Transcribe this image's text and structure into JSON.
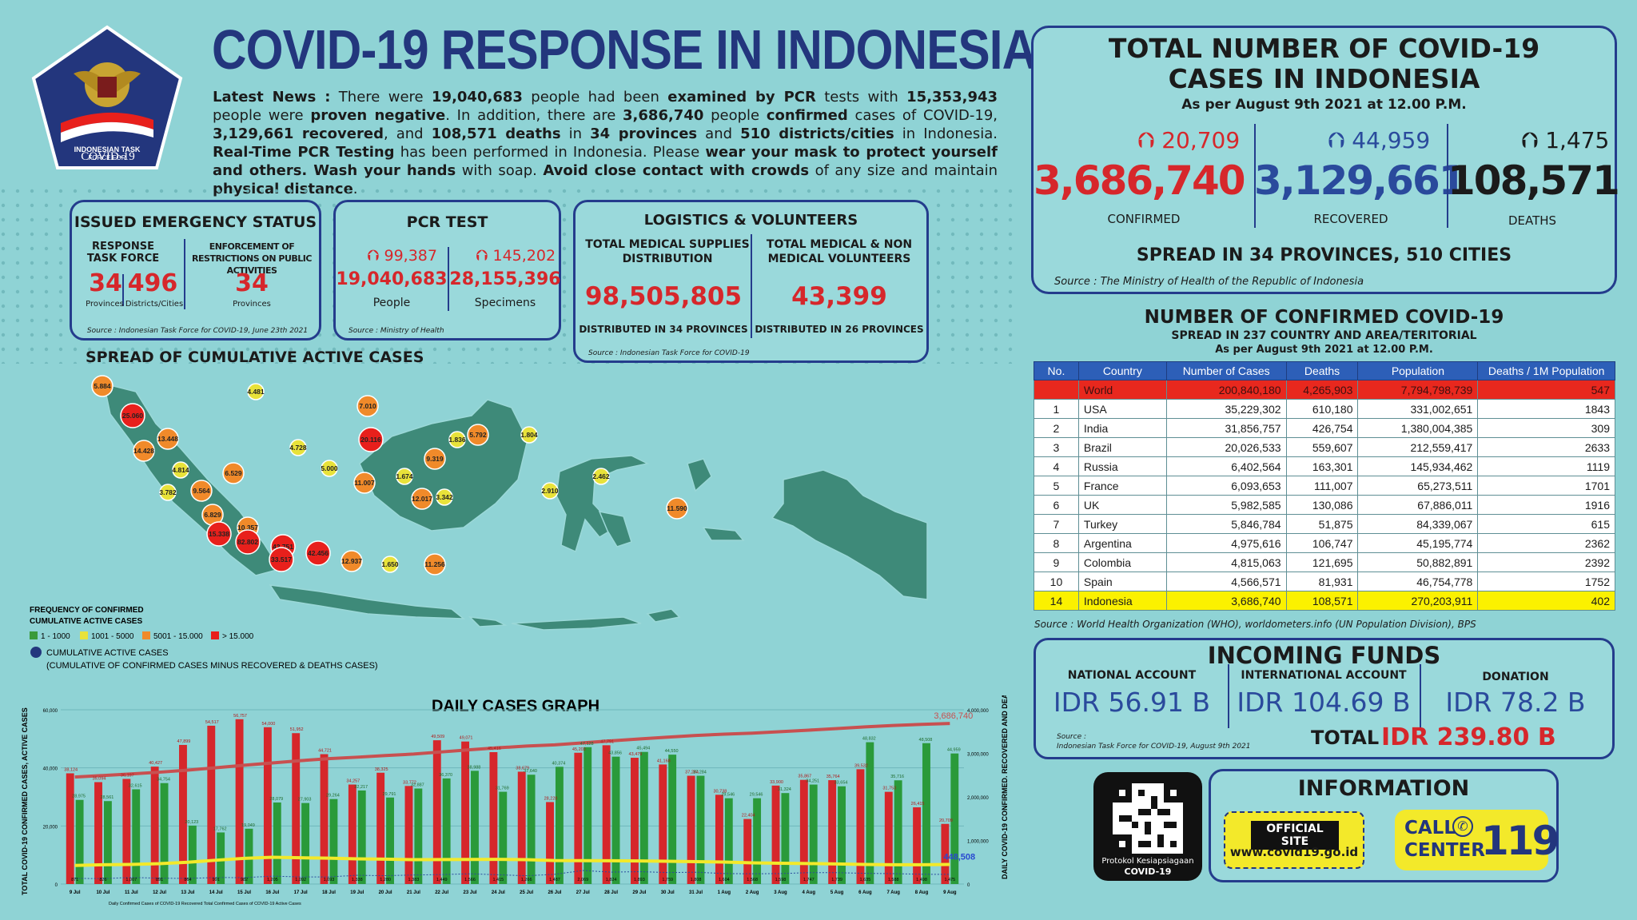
{
  "header": {
    "title": "COVID-19 RESPONSE IN INDONESIA",
    "logo_text": [
      "INDONESIAN TASK",
      "FORCE FOR",
      "COVID-19"
    ],
    "news_lead": "Latest News :",
    "news_parts": [
      {
        "t": " There were ",
        "b": false
      },
      {
        "t": "19,040,683",
        "b": true
      },
      {
        "t": " people had been ",
        "b": false
      },
      {
        "t": "examined by PCR",
        "b": true
      },
      {
        "t": " tests with ",
        "b": false
      },
      {
        "t": "15,353,943",
        "b": true
      },
      {
        "t": " people were ",
        "b": false
      },
      {
        "t": "proven negative",
        "b": true
      },
      {
        "t": ". In addition, there are ",
        "b": false
      },
      {
        "t": "3,686,740",
        "b": true
      },
      {
        "t": " people ",
        "b": false
      },
      {
        "t": "confirmed",
        "b": true
      },
      {
        "t": " cases of COVID-19, ",
        "b": false
      },
      {
        "t": "3,129,661 recovered",
        "b": true
      },
      {
        "t": ", and ",
        "b": false
      },
      {
        "t": "108,571 deaths",
        "b": true
      },
      {
        "t": " in ",
        "b": false
      },
      {
        "t": "34 provinces",
        "b": true
      },
      {
        "t": " and ",
        "b": false
      },
      {
        "t": "510 districts/cities",
        "b": true
      },
      {
        "t": " in Indonesia. ",
        "b": false
      },
      {
        "t": "Real-Time PCR Testing",
        "b": true
      },
      {
        "t": " has been performed in Indonesia. Please ",
        "b": false
      },
      {
        "t": "wear your mask to protect yourself and others. Wash your hands",
        "b": true
      },
      {
        "t": " with soap. ",
        "b": false
      },
      {
        "t": "Avoid close contact with crowds",
        "b": true
      },
      {
        "t": " of any size and maintain ",
        "b": false
      },
      {
        "t": "physical distance",
        "b": true
      },
      {
        "t": ".",
        "b": false
      }
    ]
  },
  "emergency": {
    "title": "ISSUED EMERGENCY STATUS",
    "left_label": "RESPONSE TASK FORCE",
    "right_label": "ENFORCEMENT OF RESTRICTIONS ON PUBLIC ACTIVITIES",
    "provinces_value": "34",
    "provinces_label": "Provinces",
    "districts_value": "496",
    "districts_label": "Districts/Cities",
    "enf_value": "34",
    "enf_label": "Provinces",
    "source": "Source : Indonesian Task Force for COVID-19, June 23th 2021"
  },
  "pcr": {
    "title": "PCR TEST",
    "people_delta": "99,387",
    "specimens_delta": "145,202",
    "people_value": "19,040,683",
    "specimens_value": "28,155,396",
    "people_label": "People",
    "specimens_label": "Specimens",
    "source": "Source : Ministry of Health"
  },
  "logistics": {
    "title": "LOGISTICS & VOLUNTEERS",
    "left_label": "TOTAL MEDICAL SUPPLIES DISTRIBUTION",
    "right_label": "TOTAL MEDICAL & NON MEDICAL VOLUNTEERS",
    "left_value": "98,505,805",
    "right_value": "43,399",
    "left_sub": "DISTRIBUTED IN 34 PROVINCES",
    "right_sub": "DISTRIBUTED IN 26 PROVINCES",
    "source": "Source : Indonesian Task Force for COVID-19"
  },
  "totals": {
    "title_line1": "TOTAL NUMBER OF COVID-19",
    "title_line2": "CASES IN INDONESIA",
    "asof": "As per August 9th 2021 at 12.00 P.M.",
    "confirmed_delta": "20,709",
    "recovered_delta": "44,959",
    "deaths_delta": "1,475",
    "confirmed": "3,686,740",
    "recovered": "3,129,661",
    "deaths": "108,571",
    "confirmed_label": "CONFIRMED",
    "recovered_label": "RECOVERED",
    "deaths_label": "DEATHS",
    "spread": "SPREAD IN 34 PROVINCES, 510 CITIES",
    "source": "Source : The Ministry of Health of the Republic of Indonesia"
  },
  "world": {
    "title": "NUMBER OF CONFIRMED COVID-19",
    "subtitle": "SPREAD IN 237 COUNTRY AND AREA/TERITORIAL",
    "asof": "As per August 9th 2021 at 12.00 P.M.",
    "headers": [
      "No.",
      "Country",
      "Number of Cases",
      "Deaths",
      "Population",
      "Deaths / 1M Population"
    ],
    "rows": [
      {
        "no": "",
        "country": "World",
        "cases": "200,840,180",
        "deaths": "4,265,903",
        "pop": "7,794,798,739",
        "dpm": "547",
        "kind": "world"
      },
      {
        "no": "1",
        "country": "USA",
        "cases": "35,229,302",
        "deaths": "610,180",
        "pop": "331,002,651",
        "dpm": "1843",
        "kind": ""
      },
      {
        "no": "2",
        "country": "India",
        "cases": "31,856,757",
        "deaths": "426,754",
        "pop": "1,380,004,385",
        "dpm": "309",
        "kind": ""
      },
      {
        "no": "3",
        "country": "Brazil",
        "cases": "20,026,533",
        "deaths": "559,607",
        "pop": "212,559,417",
        "dpm": "2633",
        "kind": ""
      },
      {
        "no": "4",
        "country": "Russia",
        "cases": "6,402,564",
        "deaths": "163,301",
        "pop": "145,934,462",
        "dpm": "1119",
        "kind": ""
      },
      {
        "no": "5",
        "country": "France",
        "cases": "6,093,653",
        "deaths": "111,007",
        "pop": "65,273,511",
        "dpm": "1701",
        "kind": ""
      },
      {
        "no": "6",
        "country": "UK",
        "cases": "5,982,585",
        "deaths": "130,086",
        "pop": "67,886,011",
        "dpm": "1916",
        "kind": ""
      },
      {
        "no": "7",
        "country": "Turkey",
        "cases": "5,846,784",
        "deaths": "51,875",
        "pop": "84,339,067",
        "dpm": "615",
        "kind": ""
      },
      {
        "no": "8",
        "country": "Argentina",
        "cases": "4,975,616",
        "deaths": "106,747",
        "pop": "45,195,774",
        "dpm": "2362",
        "kind": ""
      },
      {
        "no": "9",
        "country": "Colombia",
        "cases": "4,815,063",
        "deaths": "121,695",
        "pop": "50,882,891",
        "dpm": "2392",
        "kind": ""
      },
      {
        "no": "10",
        "country": "Spain",
        "cases": "4,566,571",
        "deaths": "81,931",
        "pop": "46,754,778",
        "dpm": "1752",
        "kind": ""
      },
      {
        "no": "14",
        "country": "Indonesia",
        "cases": "3,686,740",
        "deaths": "108,571",
        "pop": "270,203,911",
        "dpm": "402",
        "kind": "indo"
      }
    ],
    "source": "Source : World Health Organization (WHO), worldometers.info (UN Population Division), BPS"
  },
  "funds": {
    "title": "INCOMING FUNDS",
    "national_label": "NATIONAL ACCOUNT",
    "international_label": "INTERNATIONAL ACCOUNT",
    "donation_label": "DONATION",
    "national": "IDR 56.91 B",
    "international": "IDR 104.69 B",
    "donation": "IDR 78.2 B",
    "total_label": "TOTAL",
    "total": "IDR 239.80 B",
    "source_1": "Source :",
    "source_2": "Indonesian Task Force for COVID-19, August 9th 2021"
  },
  "info": {
    "title": "INFORMATION",
    "official_site": "OFFICIAL SITE",
    "url": "www.covid19.go.id",
    "call": "CALL",
    "center": "CENTER",
    "number": "119",
    "qr_caption_1": "Protokol Kesiapsiagaan",
    "qr_caption_2": "COVID-19"
  },
  "map": {
    "title": "SPREAD OF CUMULATIVE ACTIVE CASES",
    "legend_title_1": "FREQUENCY OF CONFIRMED",
    "legend_title_2": "CUMULATIVE ACTIVE CASES",
    "legend_items": [
      {
        "label": "1 - 1000",
        "color": "#3a9a3a"
      },
      {
        "label": "1001 - 5000",
        "color": "#e8e23a"
      },
      {
        "label": "5001 - 15.000",
        "color": "#f08a2a"
      },
      {
        "label": "> 15.000",
        "color": "#e8201c"
      }
    ],
    "cumulative_label": "CUMULATIVE ACTIVE CASES",
    "cumulative_note": "(CUMULATIVE OF CONFIRMED CASES MINUS RECOVERED & DEATHS CASES)",
    "bubbles": [
      {
        "label": "5.884",
        "level": "orange"
      },
      {
        "label": "4.481",
        "level": "yellow"
      },
      {
        "label": "25.060",
        "level": "red"
      },
      {
        "label": "13.448",
        "level": "orange"
      },
      {
        "label": "14.428",
        "level": "orange"
      },
      {
        "label": "4.814",
        "level": "yellow"
      },
      {
        "label": "6.529",
        "level": "orange"
      },
      {
        "label": "3.782",
        "level": "yellow"
      },
      {
        "label": "9.564",
        "level": "orange"
      },
      {
        "label": "6.829",
        "level": "orange"
      },
      {
        "label": "15.338",
        "level": "red"
      },
      {
        "label": "10.357",
        "level": "orange"
      },
      {
        "label": "82.802",
        "level": "red"
      },
      {
        "label": "42.751",
        "level": "red"
      },
      {
        "label": "33.517",
        "level": "red"
      },
      {
        "label": "42.456",
        "level": "red"
      },
      {
        "label": "12.937",
        "level": "orange"
      },
      {
        "label": "1.650",
        "level": "yellow"
      },
      {
        "label": "11.256",
        "level": "orange"
      },
      {
        "label": "4.728",
        "level": "yellow"
      },
      {
        "label": "7.010",
        "level": "orange"
      },
      {
        "label": "20.116",
        "level": "red"
      },
      {
        "label": "5.000",
        "level": "yellow"
      },
      {
        "label": "11.007",
        "level": "orange"
      },
      {
        "label": "1.674",
        "level": "yellow"
      },
      {
        "label": "12.017",
        "level": "orange"
      },
      {
        "label": "3.342",
        "level": "yellow"
      },
      {
        "label": "9.319",
        "level": "orange"
      },
      {
        "label": "1.836",
        "level": "yellow"
      },
      {
        "label": "5.792",
        "level": "orange"
      },
      {
        "label": "1.804",
        "level": "yellow"
      },
      {
        "label": "2.910",
        "level": "yellow"
      },
      {
        "label": "2.462",
        "level": "yellow"
      },
      {
        "label": "11.590",
        "level": "orange"
      }
    ]
  },
  "chart_data": {
    "type": "bar",
    "title": "DAILY CASES GRAPH",
    "ylabel_left": "TOTAL COVID-19 CONFIRMED CASES, ACTIVE CASES",
    "ylabel_right": "DAILY COVID-19 CONFIRMED, RECOVERED AND DEATHS",
    "y_ticks_left": [
      "0",
      "20,000",
      "40,000",
      "60,000"
    ],
    "y_ticks_right": [
      "0",
      "1,000,000",
      "2,000,000",
      "3,000,000",
      "4,000,000"
    ],
    "ylim_left": [
      0,
      60000
    ],
    "ylim_right": [
      0,
      4000000
    ],
    "categories": [
      "9 Jul",
      "10 Jul",
      "11 Jul",
      "12 Jul",
      "13 Jul",
      "14 Jul",
      "15 Jul",
      "16 Jul",
      "17 Jul",
      "18 Jul",
      "19 Jul",
      "20 Jul",
      "21 Jul",
      "22 Jul",
      "23 Jul",
      "24 Jul",
      "25 Jul",
      "26 Jul",
      "27 Jul",
      "28 Jul",
      "29 Jul",
      "30 Jul",
      "31 Jul",
      "1 Aug",
      "2 Aug",
      "3 Aug",
      "4 Aug",
      "5 Aug",
      "6 Aug",
      "7 Aug",
      "8 Aug",
      "9 Aug"
    ],
    "series": [
      {
        "name": "Daily Confirmed Cases of COVID-19",
        "color": "#d6272b",
        "values": [
          38124,
          35094,
          36197,
          40427,
          47899,
          54517,
          56757,
          54000,
          51952,
          44721,
          34257,
          38325,
          33772,
          49509,
          49071,
          45416,
          38679,
          28228,
          45203,
          47791,
          43479,
          41168,
          37284,
          30738,
          22404,
          33900,
          35867,
          35764,
          39532,
          31753,
          26415,
          20709
        ]
      },
      {
        "name": "Daily Recovered",
        "color": "#2a9a3a",
        "values": [
          28975,
          28561,
          32615,
          34754,
          20123,
          17762,
          19049,
          28079,
          27903,
          29264,
          32217,
          29791,
          32887,
          36370,
          38988,
          31769,
          37640,
          40374,
          47128,
          43856,
          45494,
          44550,
          37284,
          29546,
          29546,
          31324,
          34251,
          33654,
          48832,
          35716,
          48508,
          44959
        ]
      },
      {
        "name": "Total Confirmed Cases of COVID-19",
        "color": "#c85050",
        "values": [
          2455912,
          2491006,
          2527203,
          2567630,
          2615529,
          2670046,
          2726803,
          2780803,
          2832755,
          2877476,
          2911733,
          2950058,
          2983830,
          3033339,
          3082410,
          3127826,
          3166505,
          3194733,
          3239936,
          3287727,
          3331206,
          3372374,
          3409658,
          3440396,
          3462800,
          3496700,
          3532567,
          3568331,
          3607863,
          3639616,
          3666031,
          3686740
        ]
      },
      {
        "name": "Active Cases",
        "color": "#f3e92a",
        "values": [
          426000,
          442000,
          450000,
          467000,
          499000,
          547000,
          589000,
          614000,
          603000,
          595000,
          578000,
          571000,
          559000,
          563000,
          565000,
          567000,
          560000,
          540000,
          537000,
          535000,
          530000,
          522000,
          513000,
          505000,
          487000,
          476000,
          470000,
          462000,
          450000,
          443000,
          442000,
          448508
        ]
      },
      {
        "name": "Daily Deaths",
        "color": "#2a4a9c",
        "values": [
          871,
          826,
          1007,
          891,
          864,
          991,
          982,
          1205,
          1092,
          1093,
          1338,
          1280,
          1383,
          1449,
          1566,
          1415,
          1266,
          1487,
          2069,
          1824,
          1893,
          1759,
          1808,
          1604,
          1568,
          1598,
          1747,
          1739,
          1635,
          1588,
          1498,
          1475
        ]
      }
    ],
    "labels_confirmed": [
      "38,124",
      "35,094",
      "36,197",
      "40,427",
      "47,899",
      "54,517",
      "56,757",
      "54,000",
      "51,952",
      "44,721",
      "34,257",
      "38,325",
      "33,772",
      "49,509",
      "49,071",
      "45,416",
      "38,679",
      "28,228",
      "45,203",
      "47,791",
      "43,479",
      "41,168",
      "37,284",
      "30,738",
      "22,404",
      "33,900",
      "35,867",
      "35,764",
      "39,532",
      "31,753",
      "26,415",
      "20,709"
    ],
    "labels_recovered": [
      "28,975",
      "28,561",
      "32,615",
      "34,754",
      "20,123",
      "17,762",
      "19,049",
      "28,079",
      "27,903",
      "29,264",
      "32,217",
      "29,791",
      "32,887",
      "36,370",
      "38,988",
      "31,769",
      "37,640",
      "40,374",
      "47,128",
      "43,856",
      "45,494",
      "44,550",
      "37,284",
      "29,546",
      "29,546",
      "31,324",
      "34,251",
      "33,654",
      "48,832",
      "35,716",
      "48,508",
      "44,959"
    ],
    "labels_deaths": [
      "871",
      "826",
      "1,007",
      "891",
      "864",
      "991",
      "982",
      "1,205",
      "1,092",
      "1,093",
      "1,338",
      "1,280",
      "1,383",
      "1,449",
      "1,566",
      "1,415",
      "1,266",
      "1,487",
      "2,069",
      "1,824",
      "1,893",
      "1,759",
      "1,808",
      "1,604",
      "1,568",
      "1,598",
      "1,747",
      "1,739",
      "1,635",
      "1,588",
      "1,498",
      "1,475"
    ],
    "end_label_total": "3,686,740",
    "end_label_active": "448,508",
    "legend_note": "Daily Confirmed Cases of COVID-19  Recovered  Total Confirmed Cases of COVID-19  Active Cases"
  }
}
